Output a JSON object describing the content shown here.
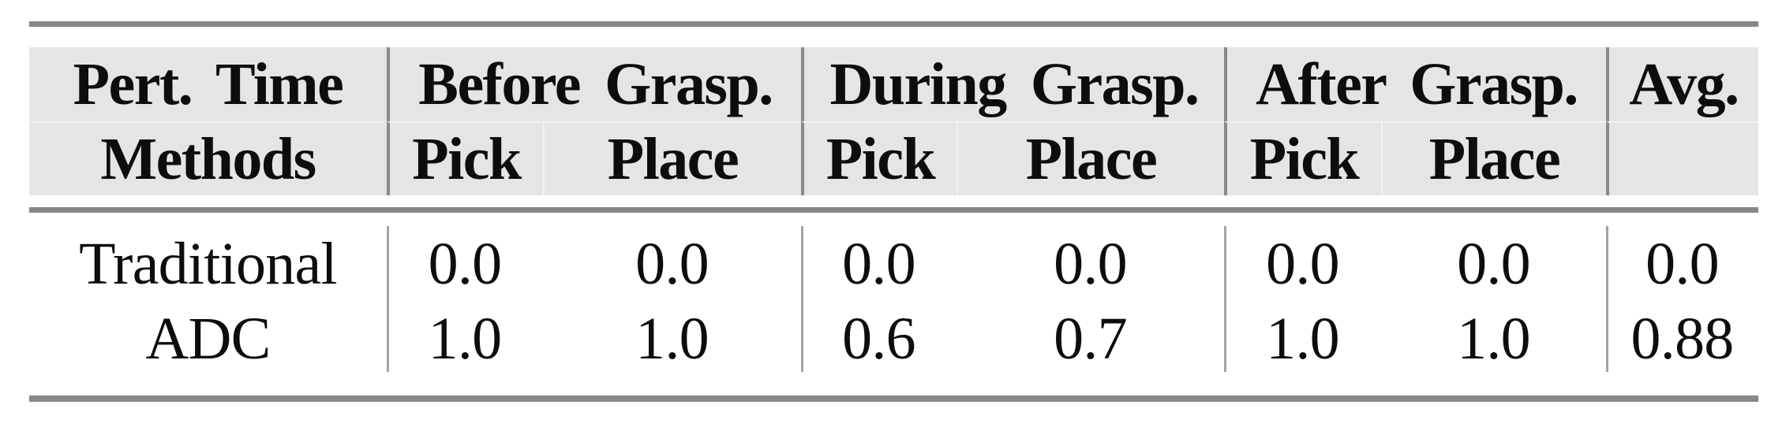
{
  "table": {
    "corner": {
      "line1": "Pert. Time",
      "line2": "Methods"
    },
    "groups": [
      {
        "label": "Before Grasp.",
        "pick": "Pick",
        "place": "Place"
      },
      {
        "label": "During Grasp.",
        "pick": "Pick",
        "place": "Place"
      },
      {
        "label": "After Grasp.",
        "pick": "Pick",
        "place": "Place"
      }
    ],
    "avg_label": "Avg.",
    "rows": [
      {
        "method": "Traditional",
        "before_pick": "0.0",
        "before_place": "0.0",
        "during_pick": "0.0",
        "during_place": "0.0",
        "after_pick": "0.0",
        "after_place": "0.0",
        "avg": "0.0"
      },
      {
        "method": "ADC",
        "before_pick": "1.0",
        "before_place": "1.0",
        "during_pick": "0.6",
        "during_place": "0.7",
        "after_pick": "1.0",
        "after_place": "1.0",
        "avg": "0.88"
      }
    ]
  },
  "colors": {
    "rule": "#878787",
    "header_background": "#e5e5e5",
    "group_separator": "#8a8a8a",
    "body_separator": "#a3a3a3",
    "cell_seam": "#f2f2f2",
    "text": "#0d0d0d",
    "page_background": "#ffffff"
  }
}
